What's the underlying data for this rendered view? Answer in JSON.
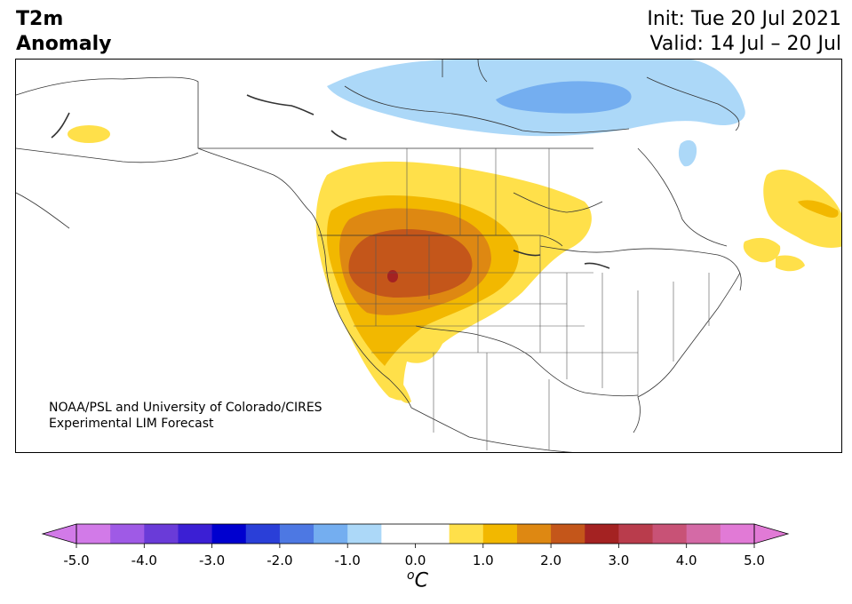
{
  "header": {
    "title_line1": "T2m",
    "title_line2": "Anomaly",
    "init": "Init: Tue 20 Jul 2021",
    "valid": "Valid: 14 Jul – 20 Jul"
  },
  "credit": {
    "line1": "NOAA/PSL and University of Colorado/CIRES",
    "line2": "Experimental LIM Forecast"
  },
  "colorbar": {
    "unit_base": "o",
    "unit_letter": "C",
    "ticks": [
      "-5.0",
      "-4.0",
      "-3.0",
      "-2.0",
      "-1.0",
      "0.0",
      "1.0",
      "2.0",
      "3.0",
      "4.0",
      "5.0"
    ],
    "colors": [
      "#d27ae8",
      "#9f5ae6",
      "#6a3bd8",
      "#3b1fd4",
      "#0000cf",
      "#2a3fd8",
      "#4d78e3",
      "#74aef0",
      "#acd8f8",
      "#ffffff",
      "#ffffff",
      "#ffe04a",
      "#f2b800",
      "#de8812",
      "#c4561a",
      "#a42222",
      "#b93c4c",
      "#c85276",
      "#d46aa6",
      "#e17ad6"
    ],
    "under_color": "#d27ae8",
    "over_color": "#e17ad6"
  },
  "legend_colors": {
    "warm1": "#ffe04a",
    "warm2": "#f2b800",
    "warm3": "#de8812",
    "warm4": "#c4561a",
    "warm5": "#a42222",
    "cool1": "#acd8f8",
    "cool2": "#74aef0"
  }
}
